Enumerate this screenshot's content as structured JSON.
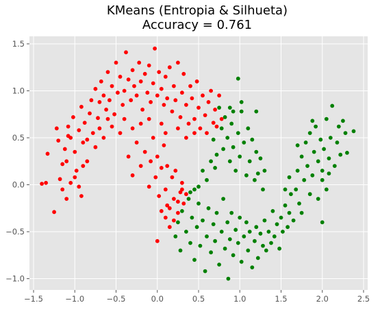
{
  "chart_data": {
    "type": "scatter",
    "title_line1": "KMeans (Entropia & Silhueta)",
    "title_line2": "Accuracy = 0.761",
    "xlabel": "",
    "ylabel": "",
    "xlim": [
      -1.55,
      2.55
    ],
    "ylim": [
      -1.12,
      1.58
    ],
    "grid": true,
    "x_ticks": [
      -1.5,
      -1.0,
      -0.5,
      0.0,
      0.5,
      1.0,
      1.5,
      2.0,
      2.5
    ],
    "x_tick_labels": [
      "−1.5",
      "−1.0",
      "−0.5",
      "0.0",
      "0.5",
      "1.0",
      "1.5",
      "2.0",
      "2.5"
    ],
    "y_ticks": [
      -1.0,
      -0.5,
      0.0,
      0.5,
      1.0,
      1.5
    ],
    "y_tick_labels": [
      "−1.0",
      "−0.5",
      "0.0",
      "0.5",
      "1.0",
      "1.5"
    ],
    "colors": {
      "plot_background": "#e5e5e5",
      "grid": "#ffffff",
      "cluster_red": "#ff0000",
      "cluster_green": "#008000"
    },
    "series": [
      {
        "color": "#ff0000",
        "points": [
          [
            -1.4,
            0.01
          ],
          [
            -1.35,
            0.02
          ],
          [
            -1.33,
            0.33
          ],
          [
            -1.25,
            -0.29
          ],
          [
            -1.22,
            0.6
          ],
          [
            -1.2,
            0.47
          ],
          [
            -1.18,
            0.06
          ],
          [
            -1.15,
            0.22
          ],
          [
            -1.12,
            0.38
          ],
          [
            -1.1,
            -0.15
          ],
          [
            -1.08,
            0.52
          ],
          [
            -1.05,
            0.02
          ],
          [
            -1.02,
            0.72
          ],
          [
            -1.0,
            0.35
          ],
          [
            -0.98,
            0.15
          ],
          [
            -0.95,
            0.58
          ],
          [
            -0.92,
            0.83
          ],
          [
            -0.9,
            0.45
          ],
          [
            -0.88,
            0.66
          ],
          [
            -0.85,
            0.25
          ],
          [
            -0.82,
            0.76
          ],
          [
            -0.8,
            0.9
          ],
          [
            -0.78,
            0.55
          ],
          [
            -0.75,
            1.02
          ],
          [
            -0.72,
            0.71
          ],
          [
            -0.7,
            0.88
          ],
          [
            -0.68,
            1.1
          ],
          [
            -0.65,
            0.95
          ],
          [
            -0.62,
            0.8
          ],
          [
            -0.6,
            1.2
          ],
          [
            -0.58,
            0.9
          ],
          [
            -0.55,
            1.05
          ],
          [
            -0.52,
            0.75
          ],
          [
            -0.5,
            1.3
          ],
          [
            -0.48,
            0.98
          ],
          [
            -0.45,
            1.15
          ],
          [
            -0.42,
            0.85
          ],
          [
            -0.4,
            1.0
          ],
          [
            -0.38,
            1.41
          ],
          [
            -0.35,
            1.12
          ],
          [
            -0.32,
            0.9
          ],
          [
            -0.3,
            1.22
          ],
          [
            -0.28,
            1.05
          ],
          [
            -0.25,
            0.95
          ],
          [
            -0.22,
            1.3
          ],
          [
            -0.2,
            1.1
          ],
          [
            -0.18,
            0.8
          ],
          [
            -0.15,
            1.18
          ],
          [
            -0.12,
            0.98
          ],
          [
            -0.1,
            1.27
          ],
          [
            -0.08,
            0.88
          ],
          [
            -0.05,
            1.08
          ],
          [
            -0.03,
            1.45
          ],
          [
            0.0,
            0.95
          ],
          [
            0.02,
            1.2
          ],
          [
            0.05,
            1.02
          ],
          [
            0.08,
            0.85
          ],
          [
            0.1,
            1.15
          ],
          [
            0.12,
            0.92
          ],
          [
            0.15,
            1.25
          ],
          [
            0.18,
            0.78
          ],
          [
            0.2,
            1.05
          ],
          [
            0.22,
            0.9
          ],
          [
            0.25,
            1.3
          ],
          [
            0.28,
            0.72
          ],
          [
            0.3,
            0.98
          ],
          [
            0.32,
            1.18
          ],
          [
            0.35,
            0.85
          ],
          [
            0.38,
            0.65
          ],
          [
            0.4,
            1.05
          ],
          [
            0.42,
            0.92
          ],
          [
            0.45,
            0.7
          ],
          [
            0.48,
            1.1
          ],
          [
            0.5,
            0.82
          ],
          [
            0.52,
            0.6
          ],
          [
            0.55,
            0.95
          ],
          [
            0.58,
            0.74
          ],
          [
            0.6,
            0.55
          ],
          [
            0.62,
            0.88
          ],
          [
            0.65,
            1.0
          ],
          [
            0.68,
            0.66
          ],
          [
            0.7,
            0.8
          ],
          [
            0.72,
            0.62
          ],
          [
            0.75,
            0.95
          ],
          [
            0.78,
            0.7
          ],
          [
            -0.35,
            0.3
          ],
          [
            -0.3,
            0.1
          ],
          [
            -0.25,
            0.45
          ],
          [
            -0.2,
            0.2
          ],
          [
            -0.15,
            0.35
          ],
          [
            -0.1,
            -0.02
          ],
          [
            -0.08,
            0.25
          ],
          [
            -0.05,
            0.5
          ],
          [
            -0.02,
            0.08
          ],
          [
            0.0,
            0.3
          ],
          [
            0.02,
            -0.12
          ],
          [
            0.05,
            0.18
          ],
          [
            0.08,
            0.42
          ],
          [
            0.1,
            -0.05
          ],
          [
            0.12,
            0.2
          ],
          [
            0.15,
            -0.25
          ],
          [
            0.18,
            0.08
          ],
          [
            0.2,
            -0.15
          ],
          [
            0.22,
            0.15
          ],
          [
            0.25,
            -0.3
          ],
          [
            0.28,
            -0.08
          ],
          [
            0.3,
            0.02
          ],
          [
            0.32,
            -0.2
          ],
          [
            0.35,
            -0.1
          ],
          [
            0.15,
            -0.45
          ],
          [
            0.1,
            -0.35
          ],
          [
            0.05,
            -0.28
          ],
          [
            0.0,
            -0.6
          ],
          [
            0.12,
            -0.22
          ],
          [
            0.2,
            -0.38
          ],
          [
            0.25,
            -0.18
          ],
          [
            0.3,
            -0.05
          ],
          [
            -0.45,
            0.55
          ],
          [
            -0.4,
            0.7
          ],
          [
            -0.3,
            0.6
          ],
          [
            -0.2,
            0.65
          ],
          [
            -0.1,
            0.7
          ],
          [
            0.05,
            0.65
          ],
          [
            0.1,
            0.55
          ],
          [
            0.25,
            0.6
          ],
          [
            0.35,
            0.5
          ],
          [
            0.45,
            0.55
          ],
          [
            -1.05,
            0.5
          ],
          [
            -1.1,
            0.25
          ],
          [
            -1.15,
            -0.05
          ],
          [
            -0.95,
            -0.02
          ],
          [
            -0.9,
            0.2
          ],
          [
            -0.85,
            0.48
          ],
          [
            -0.75,
            0.4
          ],
          [
            -0.7,
            0.6
          ],
          [
            -0.65,
            0.5
          ],
          [
            -0.6,
            0.7
          ],
          [
            -0.55,
            0.62
          ],
          [
            -0.92,
            -0.12
          ],
          [
            -1.0,
            0.08
          ],
          [
            -1.08,
            0.62
          ]
        ]
      },
      {
        "color": "#008000",
        "points": [
          [
            0.22,
            -0.55
          ],
          [
            0.25,
            -0.4
          ],
          [
            0.28,
            -0.7
          ],
          [
            0.3,
            -0.28
          ],
          [
            0.35,
            -0.5
          ],
          [
            0.38,
            -0.15
          ],
          [
            0.4,
            -0.62
          ],
          [
            0.42,
            -0.35
          ],
          [
            0.45,
            -0.8
          ],
          [
            0.48,
            -0.45
          ],
          [
            0.5,
            -0.2
          ],
          [
            0.52,
            -0.65
          ],
          [
            0.55,
            -0.38
          ],
          [
            0.58,
            -0.92
          ],
          [
            0.6,
            -0.55
          ],
          [
            0.62,
            -0.25
          ],
          [
            0.65,
            -0.72
          ],
          [
            0.68,
            -0.42
          ],
          [
            0.7,
            -0.6
          ],
          [
            0.72,
            -0.3
          ],
          [
            0.75,
            -0.85
          ],
          [
            0.78,
            -0.5
          ],
          [
            0.8,
            -0.15
          ],
          [
            0.82,
            -0.68
          ],
          [
            0.85,
            -0.4
          ],
          [
            0.86,
            -1.0
          ],
          [
            0.88,
            -0.58
          ],
          [
            0.9,
            -0.3
          ],
          [
            0.92,
            -0.75
          ],
          [
            0.95,
            -0.48
          ],
          [
            0.98,
            -0.62
          ],
          [
            1.0,
            -0.35
          ],
          [
            1.02,
            -0.82
          ],
          [
            1.05,
            -0.55
          ],
          [
            1.08,
            -0.4
          ],
          [
            1.1,
            -0.7
          ],
          [
            1.12,
            -0.5
          ],
          [
            1.15,
            -0.88
          ],
          [
            1.18,
            -0.6
          ],
          [
            1.2,
            -0.45
          ],
          [
            1.22,
            -0.78
          ],
          [
            1.25,
            -0.52
          ],
          [
            1.28,
            -0.65
          ],
          [
            1.3,
            -0.38
          ],
          [
            1.32,
            -0.7
          ],
          [
            1.35,
            -0.5
          ],
          [
            1.38,
            -0.62
          ],
          [
            1.4,
            -0.28
          ],
          [
            1.42,
            -0.55
          ],
          [
            1.45,
            -0.42
          ],
          [
            1.48,
            -0.68
          ],
          [
            1.5,
            -0.35
          ],
          [
            1.52,
            -0.5
          ],
          [
            1.55,
            -0.22
          ],
          [
            1.58,
            -0.45
          ],
          [
            1.6,
            -0.3
          ],
          [
            1.62,
            -0.1
          ],
          [
            1.65,
            -0.38
          ],
          [
            1.68,
            -0.05
          ],
          [
            1.7,
            0.15
          ],
          [
            1.72,
            -0.2
          ],
          [
            1.75,
            0.3
          ],
          [
            1.78,
            0.05
          ],
          [
            1.8,
            0.45
          ],
          [
            1.82,
            0.2
          ],
          [
            1.85,
            0.55
          ],
          [
            1.88,
            0.1
          ],
          [
            1.9,
            0.35
          ],
          [
            1.92,
            0.62
          ],
          [
            1.95,
            0.25
          ],
          [
            1.98,
            0.48
          ],
          [
            2.0,
            0.15
          ],
          [
            2.02,
            0.38
          ],
          [
            2.05,
            0.7
          ],
          [
            2.08,
            0.28
          ],
          [
            2.1,
            0.5
          ],
          [
            2.12,
            0.84
          ],
          [
            2.15,
            0.2
          ],
          [
            2.18,
            0.45
          ],
          [
            2.2,
            0.62
          ],
          [
            2.22,
            0.32
          ],
          [
            2.25,
            0.68
          ],
          [
            2.28,
            0.55
          ],
          [
            2.3,
            0.34
          ],
          [
            2.38,
            0.57
          ],
          [
            1.6,
            0.08
          ],
          [
            1.55,
            -0.05
          ],
          [
            1.7,
            0.42
          ],
          [
            1.75,
            -0.3
          ],
          [
            1.88,
            0.68
          ],
          [
            2.0,
            0.05
          ],
          [
            2.05,
            -0.05
          ],
          [
            2.0,
            -0.4
          ],
          [
            2.08,
            0.12
          ],
          [
            1.95,
            -0.15
          ],
          [
            1.85,
            -0.1
          ],
          [
            0.75,
            0.82
          ],
          [
            0.78,
            0.6
          ],
          [
            0.8,
            0.38
          ],
          [
            0.82,
            0.72
          ],
          [
            0.85,
            0.5
          ],
          [
            0.88,
            0.25
          ],
          [
            0.9,
            0.65
          ],
          [
            0.92,
            0.4
          ],
          [
            0.95,
            0.15
          ],
          [
            0.98,
            0.55
          ],
          [
            1.0,
            0.3
          ],
          [
            1.02,
            0.78
          ],
          [
            1.05,
            0.45
          ],
          [
            1.08,
            0.1
          ],
          [
            1.1,
            0.6
          ],
          [
            1.12,
            0.25
          ],
          [
            1.15,
            0.48
          ],
          [
            1.18,
            0.05
          ],
          [
            1.2,
            0.35
          ],
          [
            1.22,
            0.12
          ],
          [
            1.25,
            0.28
          ],
          [
            1.28,
            -0.05
          ],
          [
            1.3,
            0.15
          ],
          [
            0.98,
            1.13
          ],
          [
            1.02,
            0.88
          ],
          [
            0.92,
            0.78
          ],
          [
            0.88,
            0.82
          ],
          [
            1.2,
            0.78
          ],
          [
            0.7,
            0.18
          ],
          [
            0.72,
            0.32
          ],
          [
            0.68,
            0.48
          ],
          [
            0.65,
            0.25
          ],
          [
            0.6,
            0.05
          ],
          [
            0.55,
            0.15
          ],
          [
            0.5,
            -0.02
          ],
          [
            0.45,
            -0.05
          ],
          [
            0.4,
            -0.08
          ]
        ]
      }
    ]
  }
}
